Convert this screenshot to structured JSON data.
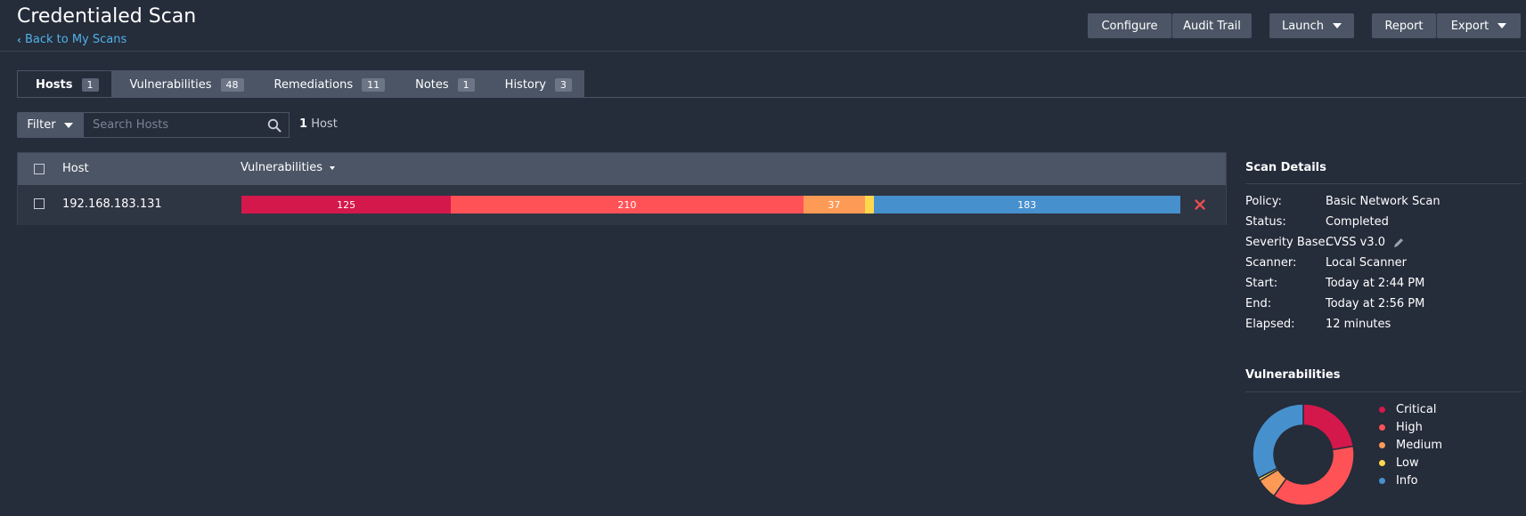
{
  "header": {
    "title": "Credentialed Scan",
    "back_link": "Back to My Scans",
    "buttons": {
      "configure": "Configure",
      "audit_trail": "Audit Trail",
      "launch": "Launch",
      "report": "Report",
      "export": "Export"
    }
  },
  "tabs": [
    {
      "label": "Hosts",
      "count": "1"
    },
    {
      "label": "Vulnerabilities",
      "count": "48"
    },
    {
      "label": "Remediations",
      "count": "11"
    },
    {
      "label": "Notes",
      "count": "1"
    },
    {
      "label": "History",
      "count": "3"
    }
  ],
  "filter": {
    "button_label": "Filter",
    "search_placeholder": "Search Hosts",
    "count_number": "1",
    "count_label": "Host"
  },
  "table": {
    "columns": {
      "host": "Host",
      "vulnerabilities": "Vulnerabilities"
    },
    "rows": [
      {
        "host": "192.168.183.131",
        "counts": {
          "critical": 125,
          "high": 210,
          "medium": 37,
          "low": 5,
          "info": 183
        },
        "labels": {
          "critical": "125",
          "high": "210",
          "medium": "37",
          "info": "183"
        }
      }
    ]
  },
  "scan_details": {
    "title": "Scan Details",
    "items": [
      {
        "label": "Policy:",
        "value": "Basic Network Scan"
      },
      {
        "label": "Status:",
        "value": "Completed"
      },
      {
        "label": "Severity Base:",
        "value": "CVSS v3.0"
      },
      {
        "label": "Scanner:",
        "value": "Local Scanner"
      },
      {
        "label": "Start:",
        "value": "Today at 2:44 PM"
      },
      {
        "label": "End:",
        "value": "Today at 2:56 PM"
      },
      {
        "label": "Elapsed:",
        "value": "12 minutes"
      }
    ]
  },
  "vulnerabilities_panel": {
    "title": "Vulnerabilities",
    "legend": [
      {
        "label": "Critical",
        "color": "#d5184b"
      },
      {
        "label": "High",
        "color": "#ff5257"
      },
      {
        "label": "Medium",
        "color": "#fd9a56"
      },
      {
        "label": "Low",
        "color": "#ffd74f"
      },
      {
        "label": "Info",
        "color": "#4790ce"
      }
    ]
  },
  "colors": {
    "critical": "#d5184b",
    "high": "#ff5257",
    "medium": "#fd9a56",
    "low": "#ffd74f",
    "info": "#4790ce",
    "link": "#4fb3e8",
    "remove": "#e84d4d"
  }
}
